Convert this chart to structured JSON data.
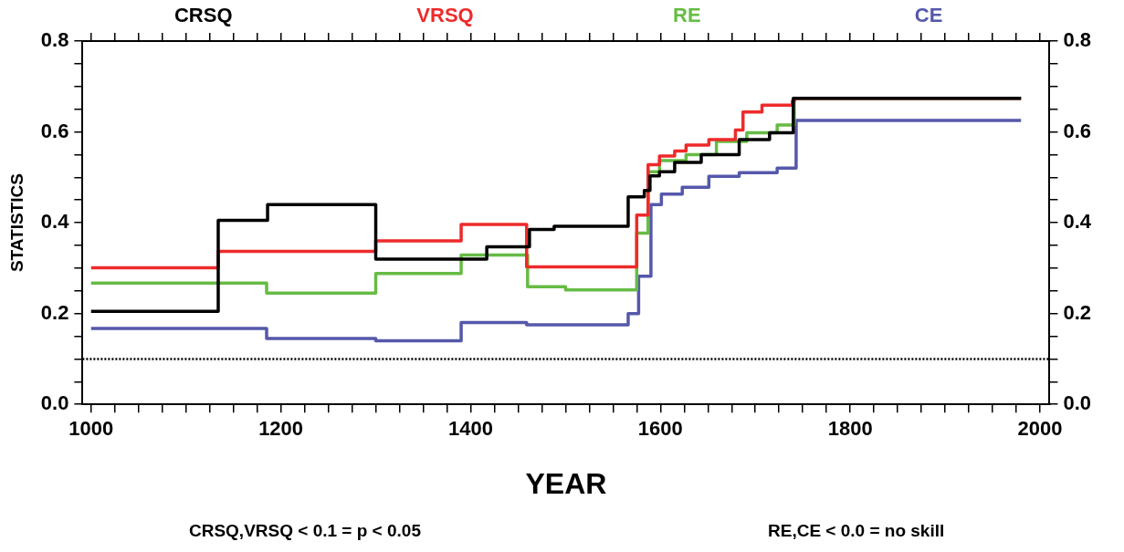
{
  "chart_data": {
    "type": "step",
    "xlabel": "YEAR",
    "ylabel": "STATISTICS",
    "xlim": [
      991,
      2010
    ],
    "xticks": [
      1000,
      {
        "value": 1025,
        "label": null
      },
      {
        "value": 1050,
        "label": null
      },
      {
        "value": 1075,
        "label": null
      },
      {
        "value": 1100,
        "label": null
      },
      {
        "value": 1125,
        "label": null
      },
      {
        "value": 1150,
        "label": null
      },
      {
        "value": 1175,
        "label": null
      },
      1200,
      {
        "value": 1225,
        "label": null
      },
      {
        "value": 1250,
        "label": null
      },
      {
        "value": 1275,
        "label": null
      },
      {
        "value": 1300,
        "label": null
      },
      {
        "value": 1325,
        "label": null
      },
      {
        "value": 1350,
        "label": null
      },
      {
        "value": 1375,
        "label": null
      },
      1400,
      {
        "value": 1425,
        "label": null
      },
      {
        "value": 1450,
        "label": null
      },
      {
        "value": 1475,
        "label": null
      },
      {
        "value": 1500,
        "label": null
      },
      {
        "value": 1525,
        "label": null
      },
      {
        "value": 1550,
        "label": null
      },
      {
        "value": 1575,
        "label": null
      },
      1600,
      {
        "value": 1625,
        "label": null
      },
      {
        "value": 1650,
        "label": null
      },
      {
        "value": 1675,
        "label": null
      },
      {
        "value": 1700,
        "label": null
      },
      {
        "value": 1725,
        "label": null
      },
      {
        "value": 1750,
        "label": null
      },
      {
        "value": 1775,
        "label": null
      },
      1800,
      {
        "value": 1825,
        "label": null
      },
      {
        "value": 1850,
        "label": null
      },
      {
        "value": 1875,
        "label": null
      },
      {
        "value": 1900,
        "label": null
      },
      {
        "value": 1925,
        "label": null
      },
      {
        "value": 1950,
        "label": null
      },
      {
        "value": 1975,
        "label": null
      },
      2000
    ],
    "ylim": [
      0,
      0.8
    ],
    "yticks": [
      {
        "value": 0,
        "label": "0.0"
      },
      {
        "value": 0.05,
        "label": null
      },
      {
        "value": 0.1,
        "label": null
      },
      {
        "value": 0.15,
        "label": null
      },
      {
        "value": 0.2,
        "label": "0.2"
      },
      {
        "value": 0.25,
        "label": null
      },
      {
        "value": 0.3,
        "label": null
      },
      {
        "value": 0.35,
        "label": null
      },
      {
        "value": 0.4,
        "label": "0.4"
      },
      {
        "value": 0.45,
        "label": null
      },
      {
        "value": 0.5,
        "label": null
      },
      {
        "value": 0.55,
        "label": null
      },
      {
        "value": 0.6,
        "label": "0.6"
      },
      {
        "value": 0.65,
        "label": null
      },
      {
        "value": 0.7,
        "label": null
      },
      {
        "value": 0.75,
        "label": null
      },
      {
        "value": 0.8,
        "label": "0.8"
      }
    ],
    "y2lim": [
      0,
      0.8
    ],
    "y2ticks": [
      {
        "value": 0,
        "label": "0.0"
      },
      {
        "value": 0.05,
        "label": null
      },
      {
        "value": 0.1,
        "label": null
      },
      {
        "value": 0.15,
        "label": null
      },
      {
        "value": 0.2,
        "label": "0.2"
      },
      {
        "value": 0.25,
        "label": null
      },
      {
        "value": 0.3,
        "label": null
      },
      {
        "value": 0.35,
        "label": null
      },
      {
        "value": 0.4,
        "label": "0.4"
      },
      {
        "value": 0.45,
        "label": null
      },
      {
        "value": 0.5,
        "label": null
      },
      {
        "value": 0.55,
        "label": null
      },
      {
        "value": 0.6,
        "label": "0.6"
      },
      {
        "value": 0.65,
        "label": null
      },
      {
        "value": 0.7,
        "label": null
      },
      {
        "value": 0.75,
        "label": null
      },
      {
        "value": 0.8,
        "label": "0.8"
      }
    ],
    "grid": false,
    "legend": "top",
    "marker": "none",
    "line_style": "solid",
    "series": [
      {
        "name": "CRSQ",
        "color": "#000000",
        "x": [
          1000,
          1134,
          1186,
          1300,
          1417,
          1462,
          1488,
          1566,
          1583,
          1589,
          1599,
          1615,
          1643,
          1683,
          1715,
          1740,
          1980
        ],
        "values": [
          0.205,
          0.405,
          0.44,
          0.32,
          0.347,
          0.385,
          0.392,
          0.457,
          0.471,
          0.503,
          0.512,
          0.533,
          0.55,
          0.583,
          0.598,
          0.674,
          0.674
        ]
      },
      {
        "name": "VRSQ",
        "color": "#ee2a2a",
        "x": [
          1000,
          1134,
          1300,
          1390,
          1459,
          1575,
          1587,
          1599,
          1615,
          1627,
          1651,
          1679,
          1687,
          1707,
          1739,
          1741,
          1980
        ],
        "values": [
          0.301,
          0.337,
          0.36,
          0.396,
          0.303,
          0.417,
          0.528,
          0.547,
          0.558,
          0.571,
          0.583,
          0.604,
          0.644,
          0.659,
          0.668,
          0.674,
          0.674
        ]
      },
      {
        "name": "RE",
        "color": "#66bb44",
        "x": [
          1000,
          1185,
          1300,
          1390,
          1460,
          1500,
          1575,
          1587,
          1599,
          1627,
          1659,
          1691,
          1723,
          1741,
          1980
        ],
        "values": [
          0.267,
          0.245,
          0.288,
          0.329,
          0.259,
          0.252,
          0.377,
          0.512,
          0.537,
          0.55,
          0.579,
          0.598,
          0.615,
          0.674,
          0.674
        ]
      },
      {
        "name": "CE",
        "color": "#5558aa",
        "x": [
          1000,
          1185,
          1300,
          1390,
          1459,
          1566,
          1577,
          1590,
          1601,
          1623,
          1651,
          1683,
          1723,
          1743,
          1980
        ],
        "values": [
          0.167,
          0.145,
          0.14,
          0.18,
          0.175,
          0.2,
          0.282,
          0.44,
          0.463,
          0.478,
          0.502,
          0.51,
          0.52,
          0.625,
          0.625
        ]
      }
    ],
    "ref_lines": [
      {
        "axis": "y",
        "value": 0.1,
        "color": "#000000",
        "line_style": "dotted"
      }
    ],
    "annotations": [
      "CRSQ,VRSQ < 0.1 = p < 0.05",
      "RE,CE < 0.0 = no skill"
    ]
  }
}
